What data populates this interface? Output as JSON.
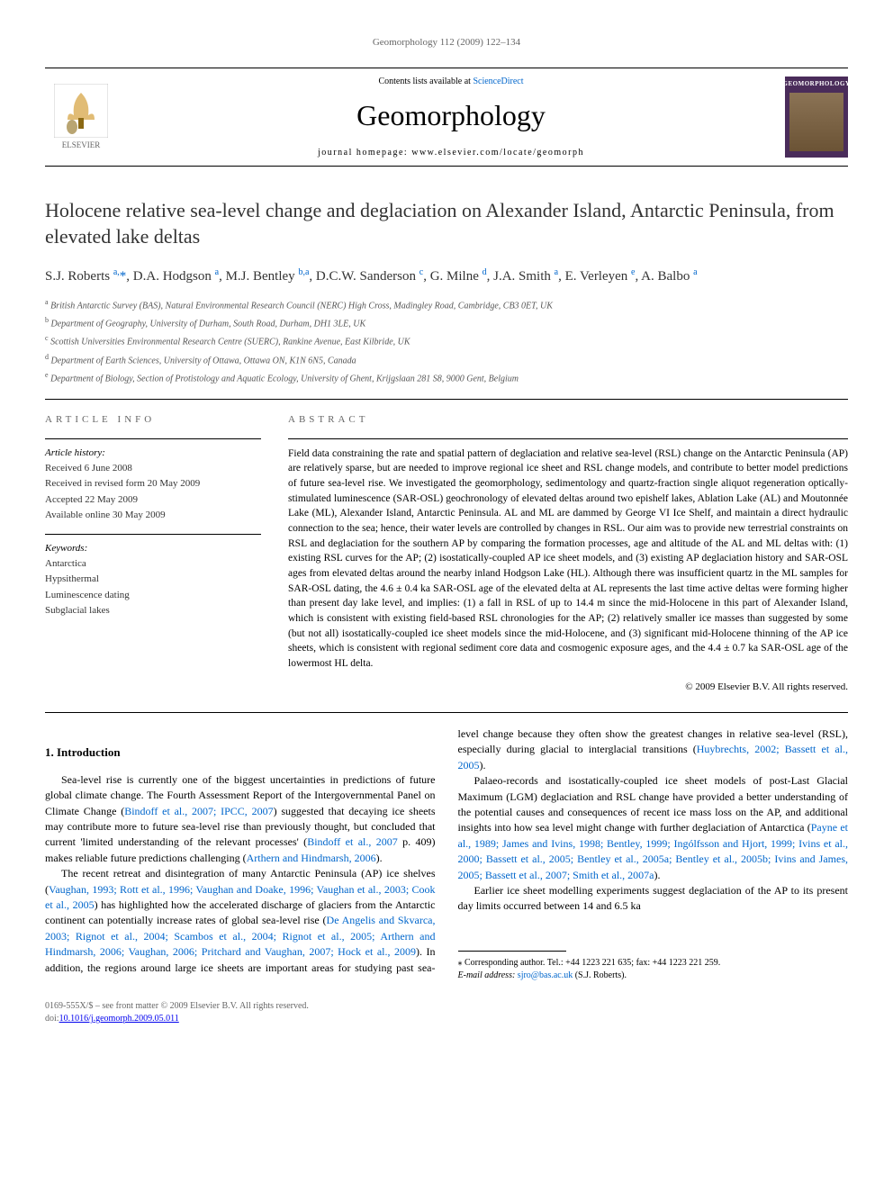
{
  "header": {
    "citation": "Geomorphology 112 (2009) 122–134",
    "contents_prefix": "Contents lists available at ",
    "contents_link": "ScienceDirect",
    "journal_name": "Geomorphology",
    "homepage_prefix": "journal homepage: ",
    "homepage_url": "www.elsevier.com/locate/geomorph",
    "publisher": "ELSEVIER",
    "cover_text": "GEOMORPHOLOGY"
  },
  "title": "Holocene relative sea-level change and deglaciation on Alexander Island, Antarctic Peninsula, from elevated lake deltas",
  "authors_html": "S.J. Roberts <sup>a,</sup><span class='star'>*</span>, D.A. Hodgson <sup>a</sup>, M.J. Bentley <sup>b,a</sup>, D.C.W. Sanderson <sup>c</sup>, G. Milne <sup>d</sup>, J.A. Smith <sup>a</sup>, E. Verleyen <sup>e</sup>, A. Balbo <sup>a</sup>",
  "affiliations": [
    {
      "sup": "a",
      "text": "British Antarctic Survey (BAS), Natural Environmental Research Council (NERC) High Cross, Madingley Road, Cambridge, CB3 0ET, UK"
    },
    {
      "sup": "b",
      "text": "Department of Geography, University of Durham, South Road, Durham, DH1 3LE, UK"
    },
    {
      "sup": "c",
      "text": "Scottish Universities Environmental Research Centre (SUERC), Rankine Avenue, East Kilbride, UK"
    },
    {
      "sup": "d",
      "text": "Department of Earth Sciences, University of Ottawa, Ottawa ON, K1N 6N5, Canada"
    },
    {
      "sup": "e",
      "text": "Department of Biology, Section of Protistology and Aquatic Ecology, University of Ghent, Krijgslaan 281 S8, 9000 Gent, Belgium"
    }
  ],
  "article_info": {
    "heading": "ARTICLE INFO",
    "history_label": "Article history:",
    "history": [
      "Received 6 June 2008",
      "Received in revised form 20 May 2009",
      "Accepted 22 May 2009",
      "Available online 30 May 2009"
    ],
    "keywords_label": "Keywords:",
    "keywords": [
      "Antarctica",
      "Hypsithermal",
      "Luminescence dating",
      "Subglacial lakes"
    ]
  },
  "abstract": {
    "heading": "ABSTRACT",
    "text": "Field data constraining the rate and spatial pattern of deglaciation and relative sea-level (RSL) change on the Antarctic Peninsula (AP) are relatively sparse, but are needed to improve regional ice sheet and RSL change models, and contribute to better model predictions of future sea-level rise. We investigated the geomorphology, sedimentology and quartz-fraction single aliquot regeneration optically-stimulated luminescence (SAR-OSL) geochronology of elevated deltas around two epishelf lakes, Ablation Lake (AL) and Moutonnée Lake (ML), Alexander Island, Antarctic Peninsula. AL and ML are dammed by George VI Ice Shelf, and maintain a direct hydraulic connection to the sea; hence, their water levels are controlled by changes in RSL. Our aim was to provide new terrestrial constraints on RSL and deglaciation for the southern AP by comparing the formation processes, age and altitude of the AL and ML deltas with: (1) existing RSL curves for the AP; (2) isostatically-coupled AP ice sheet models, and (3) existing AP deglaciation history and SAR-OSL ages from elevated deltas around the nearby inland Hodgson Lake (HL). Although there was insufficient quartz in the ML samples for SAR-OSL dating, the 4.6 ± 0.4 ka SAR-OSL age of the elevated delta at AL represents the last time active deltas were forming higher than present day lake level, and implies: (1) a fall in RSL of up to 14.4 m since the mid-Holocene in this part of Alexander Island, which is consistent with existing field-based RSL chronologies for the AP; (2) relatively smaller ice masses than suggested by some (but not all) isostatically-coupled ice sheet models since the mid-Holocene, and (3) significant mid-Holocene thinning of the AP ice sheets, which is consistent with regional sediment core data and cosmogenic exposure ages, and the 4.4 ± 0.7 ka SAR-OSL age of the lowermost HL delta.",
    "copyright": "© 2009 Elsevier B.V. All rights reserved."
  },
  "intro": {
    "heading": "1. Introduction",
    "p1_pre": "Sea-level rise is currently one of the biggest uncertainties in predictions of future global climate change. The Fourth Assessment Report of the Intergovernmental Panel on Climate Change (",
    "p1_ref1": "Bindoff et al., 2007; IPCC, 2007",
    "p1_mid1": ") suggested that decaying ice sheets may contribute more to future sea-level rise than previously thought, but concluded that current 'limited understanding of the relevant processes' (",
    "p1_ref2": "Bindoff et al., 2007",
    "p1_mid2": " p. 409) makes reliable future predictions challenging (",
    "p1_ref3": "Arthern and Hindmarsh, 2006",
    "p1_end": ").",
    "p2_pre": "The recent retreat and disintegration of many Antarctic Peninsula (AP) ice shelves (",
    "p2_ref1": "Vaughan, 1993; Rott et al., 1996; Vaughan and Doake, 1996; Vaughan et al., 2003; Cook et al., 2005",
    "p2_mid1": ") has highlighted how the accelerated discharge of glaciers from the Antarctic continent can potentially increase rates of global sea-level rise (",
    "p2_ref2": "De Angelis and Skvarca, 2003; Rignot et al., 2004; Scambos et al., 2004; Rignot et al., 2005; Arthern and Hindmarsh, 2006; Vaughan, 2006; Pritchard and Vaughan, 2007; Hock et al., 2009",
    "p2_mid2": "). In addition, the regions around large ice sheets are important areas for studying past sea-level change because they often show the greatest changes in relative sea-level (RSL), especially during glacial to interglacial transitions (",
    "p2_ref3": "Huybrechts, 2002; Bassett et al., 2005",
    "p2_end": ").",
    "p3_pre": "Palaeo-records and isostatically-coupled ice sheet models of post-Last Glacial Maximum (LGM) deglaciation and RSL change have provided a better understanding of the potential causes and consequences of recent ice mass loss on the AP, and additional insights into how sea level might change with further deglaciation of Antarctica (",
    "p3_ref1": "Payne et al., 1989; James and Ivins, 1998; Bentley, 1999; Ingólfsson and Hjort, 1999; Ivins et al., 2000; Bassett et al., 2005; Bentley et al., 2005a; Bentley et al., 2005b; Ivins and James, 2005; Bassett et al., 2007; Smith et al., 2007a",
    "p3_end": ").",
    "p4": "Earlier ice sheet modelling experiments suggest deglaciation of the AP to its present day limits occurred between 14 and 6.5 ka"
  },
  "footnote": {
    "corr_label": "* Corresponding author. Tel.: +44 1223 221 635; fax: +44 1223 221 259.",
    "email_label": "E-mail address: ",
    "email": "sjro@bas.ac.uk",
    "email_suffix": " (S.J. Roberts)."
  },
  "footer": {
    "line1": "0169-555X/$ – see front matter © 2009 Elsevier B.V. All rights reserved.",
    "line2": "doi:",
    "doi": "10.1016/j.geomorph.2009.05.011"
  },
  "colors": {
    "link": "#0066cc",
    "text": "#000000",
    "muted": "#666666"
  }
}
